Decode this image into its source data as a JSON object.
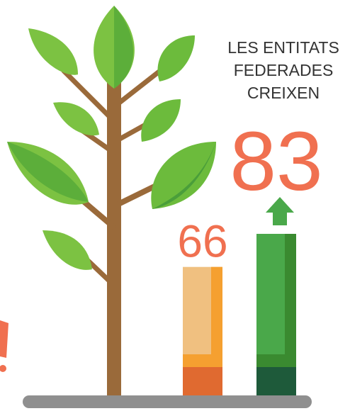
{
  "title_lines": [
    "LES ENTITATS",
    "FEDERADES",
    "CREIXEN"
  ],
  "bars": [
    {
      "label": "66",
      "value": 66
    },
    {
      "label": "83",
      "value": 83
    }
  ]
}
